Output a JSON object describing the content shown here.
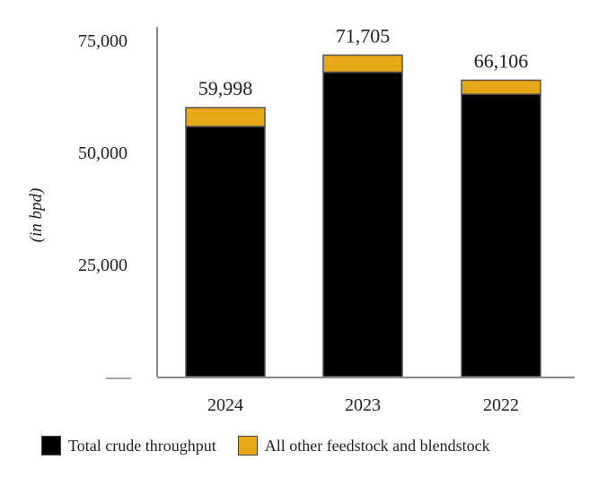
{
  "chart_data": {
    "type": "bar",
    "stacked": true,
    "categories": [
      "2024",
      "2023",
      "2022"
    ],
    "series": [
      {
        "name": "Total crude throughput",
        "values": [
          55800,
          67900,
          63000
        ],
        "color": "#000000"
      },
      {
        "name": "All other feedstock and blendstock",
        "values": [
          4198,
          3805,
          3106
        ],
        "color": "#e6a817"
      }
    ],
    "totals": [
      "59,998",
      "71,705",
      "66,106"
    ],
    "ylabel": "(in bpd)",
    "yticks": [
      {
        "value": 25000,
        "label": "25,000"
      },
      {
        "value": 50000,
        "label": "50,000"
      },
      {
        "value": 75000,
        "label": "75,000"
      }
    ],
    "ylim": [
      0,
      80000
    ],
    "grid": false,
    "legend_position": "bottom"
  }
}
